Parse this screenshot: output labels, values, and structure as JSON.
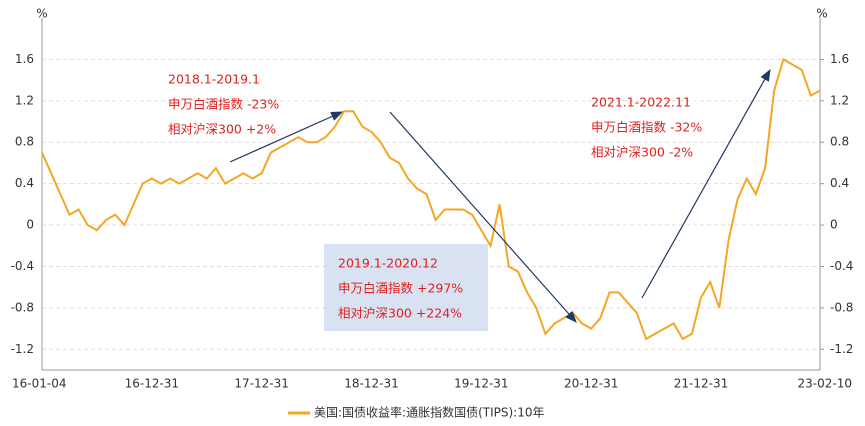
{
  "chart_data": {
    "type": "line",
    "ylabel": "%",
    "y2label": "%",
    "categories": [
      "16-01-04",
      null,
      null,
      null,
      null,
      null,
      null,
      null,
      null,
      null,
      null,
      null,
      "16-12-31",
      null,
      null,
      null,
      null,
      null,
      null,
      null,
      null,
      null,
      null,
      null,
      "17-12-31",
      null,
      null,
      null,
      null,
      null,
      null,
      null,
      null,
      null,
      null,
      null,
      "18-12-31",
      null,
      null,
      null,
      null,
      null,
      null,
      null,
      null,
      null,
      null,
      null,
      "19-12-31",
      null,
      null,
      null,
      null,
      null,
      null,
      null,
      null,
      null,
      null,
      null,
      "20-12-31",
      null,
      null,
      null,
      null,
      null,
      null,
      null,
      null,
      null,
      null,
      null,
      "21-12-31",
      null,
      null,
      null,
      null,
      null,
      null,
      null,
      null,
      null,
      null,
      null,
      null,
      "23-02-10"
    ],
    "series": [
      {
        "name": "美国:国债收益率:通胀指数国债(TIPS):10年",
        "color": "#f5a623",
        "values": [
          0.7,
          0.5,
          0.3,
          0.1,
          0.15,
          0.0,
          -0.05,
          0.05,
          0.1,
          0.0,
          0.2,
          0.4,
          0.45,
          0.4,
          0.45,
          0.4,
          0.45,
          0.5,
          0.45,
          0.55,
          0.4,
          0.45,
          0.5,
          0.45,
          0.5,
          0.7,
          0.75,
          0.8,
          0.85,
          0.8,
          0.8,
          0.85,
          0.95,
          1.1,
          1.1,
          0.95,
          0.9,
          0.8,
          0.65,
          0.6,
          0.45,
          0.35,
          0.3,
          0.05,
          0.15,
          0.15,
          0.15,
          0.1,
          -0.05,
          -0.2,
          0.2,
          -0.4,
          -0.45,
          -0.65,
          -0.8,
          -1.05,
          -0.95,
          -0.9,
          -0.85,
          -0.95,
          -1.0,
          -0.9,
          -0.65,
          -0.65,
          -0.75,
          -0.85,
          -1.1,
          -1.05,
          -1.0,
          -0.95,
          -1.1,
          -1.05,
          -0.7,
          -0.55,
          -0.8,
          -0.15,
          0.25,
          0.45,
          0.3,
          0.55,
          1.3,
          1.6,
          1.55,
          1.5,
          1.25,
          1.3
        ]
      }
    ],
    "ylim": [
      -1.4,
      2.0
    ],
    "yticks": [
      -1.2,
      -0.8,
      -0.4,
      0,
      0.4,
      0.8,
      1.2,
      1.6
    ],
    "y2lim": [
      -1.4,
      2.0
    ],
    "y2ticks": [
      -1.2,
      -0.8,
      -0.4,
      0,
      0.4,
      0.8,
      1.2,
      1.6
    ],
    "grid": true,
    "annotations": [
      {
        "lines": [
          "2018.1-2019.1",
          "申万白酒指数 -23%",
          "相对沪深300 +2%"
        ]
      },
      {
        "lines": [
          "2019.1-2020.12",
          "申万白酒指数 +297%",
          "相对沪深300 +224%"
        ]
      },
      {
        "lines": [
          "2021.1-2022.11",
          "申万白酒指数 -32%",
          "相对沪深300 -2%"
        ]
      }
    ]
  }
}
